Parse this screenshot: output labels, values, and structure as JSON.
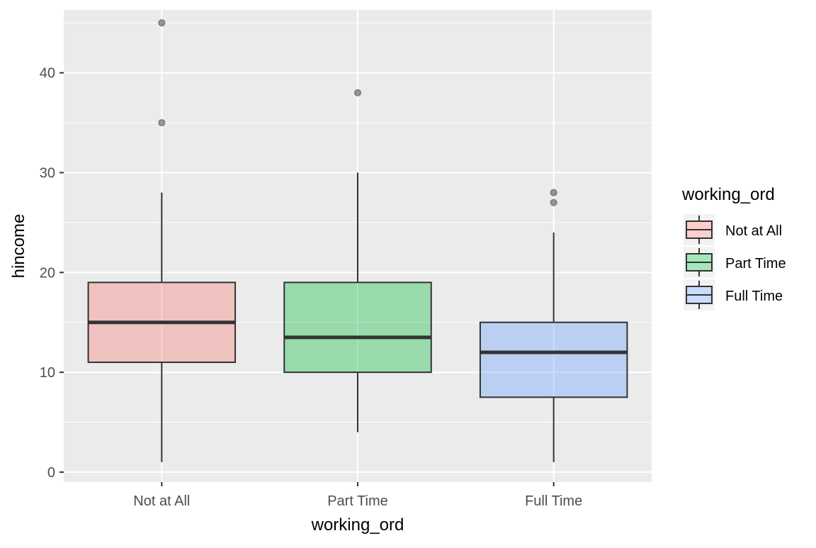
{
  "chart_data": {
    "type": "box",
    "xlabel": "working_ord",
    "ylabel": "hincome",
    "ylim": [
      -1,
      46.3
    ],
    "y_ticks": [
      0,
      10,
      20,
      30,
      40
    ],
    "categories": [
      "Not at All",
      "Part Time",
      "Full Time"
    ],
    "grid": true,
    "legend": {
      "title": "working_ord",
      "position": "right",
      "entries": [
        "Not at All",
        "Part Time",
        "Full Time"
      ]
    },
    "colors": {
      "panel_background": "#EBEBEB",
      "grid": "#FFFFFF",
      "box_outline": "#333333",
      "outlier": "#555555",
      "fills": [
        "#F8766D",
        "#00BA38",
        "#619CFF"
      ]
    },
    "fill_alpha": 0.35,
    "series": [
      {
        "name": "Not at All",
        "whisker_low": 1,
        "q1": 11,
        "median": 15,
        "q3": 19,
        "whisker_high": 28,
        "outliers": [
          35,
          45
        ]
      },
      {
        "name": "Part Time",
        "whisker_low": 4,
        "q1": 10,
        "median": 13.5,
        "q3": 19,
        "whisker_high": 30,
        "outliers": [
          38
        ]
      },
      {
        "name": "Full Time",
        "whisker_low": 1,
        "q1": 7.5,
        "median": 12,
        "q3": 15,
        "whisker_high": 24,
        "outliers": [
          27,
          28
        ]
      }
    ]
  }
}
